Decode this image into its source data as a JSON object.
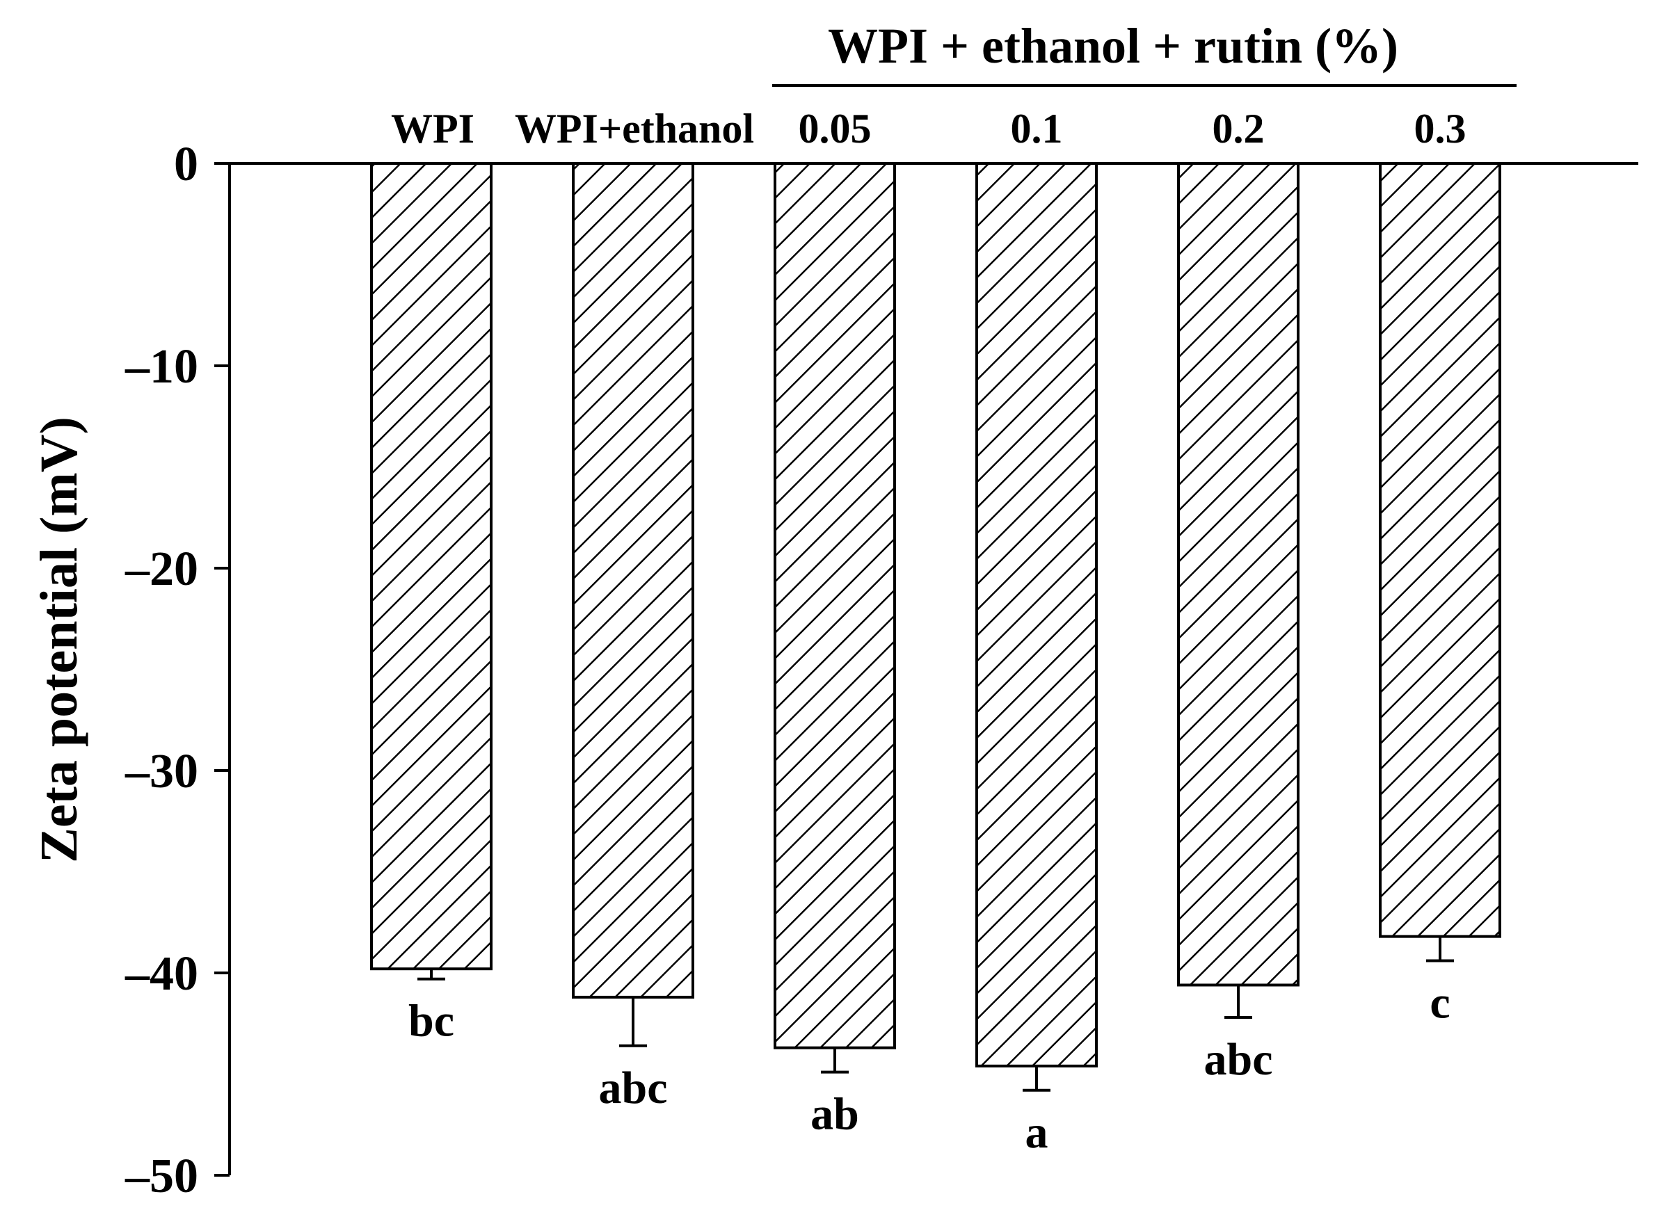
{
  "chart_data": {
    "type": "bar",
    "group_header": "WPI + ethanol + rutin (%)",
    "categories": [
      "WPI",
      "WPI+ethanol",
      "0.05",
      "0.1",
      "0.2",
      "0.3"
    ],
    "values": [
      -39.8,
      -41.2,
      -43.7,
      -44.6,
      -40.6,
      -38.2
    ],
    "error": [
      0.5,
      2.4,
      1.2,
      1.2,
      1.6,
      1.2
    ],
    "significance": [
      "bc",
      "abc",
      "ab",
      "a",
      "abc",
      "c"
    ],
    "ylabel": "Zeta potential (mV)",
    "xlabel": "",
    "ylim": [
      -50,
      0
    ],
    "yticks": [
      0,
      -10,
      -20,
      -30,
      -40,
      -50
    ],
    "ytick_labels": [
      "0",
      "–10",
      "–20",
      "–30",
      "–40",
      "–50"
    ],
    "grid": false,
    "legend": "none",
    "bar_fill": "diagonal-hatch",
    "colors": {
      "bar_stroke": "#000000",
      "hatch": "#000000",
      "background": "#ffffff"
    }
  }
}
